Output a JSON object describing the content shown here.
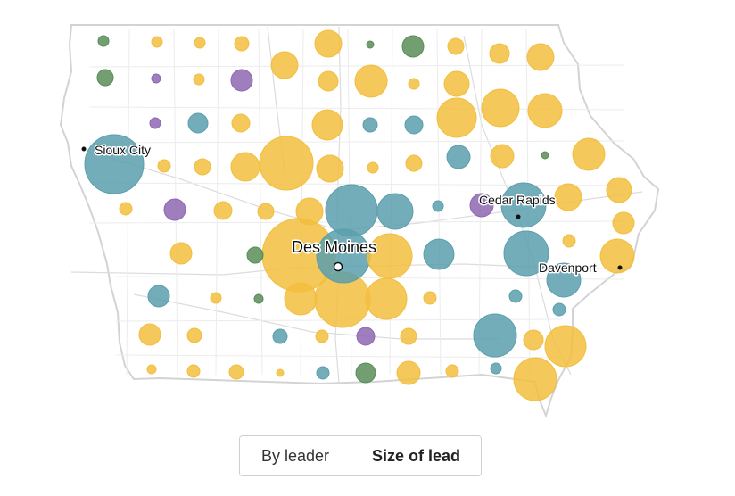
{
  "colors": {
    "yellow": "#f2be3d",
    "blue": "#5b9fad",
    "green": "#5b8d58",
    "purple": "#8e67b3",
    "outline": "#d3d3d3"
  },
  "cities": [
    {
      "name": "Sioux City",
      "kind": "dot"
    },
    {
      "name": "Cedar Rapids",
      "kind": "dot"
    },
    {
      "name": "Des Moines",
      "kind": "capital"
    },
    {
      "name": "Davenport",
      "kind": "dot"
    }
  ],
  "toggle": {
    "by_leader": "By leader",
    "size_of_lead": "Size of lead",
    "active": "size_of_lead"
  }
}
